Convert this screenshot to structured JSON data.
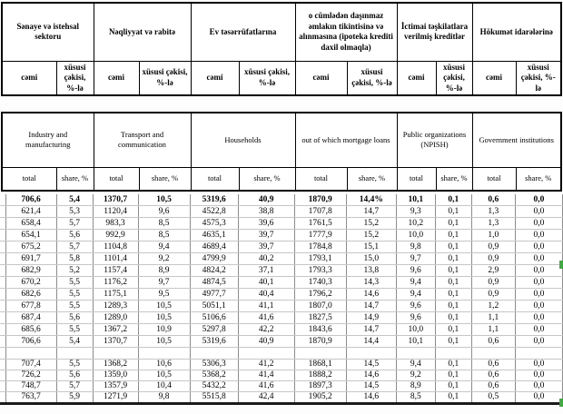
{
  "colors": {
    "border_black": "#000000",
    "row_gridline": "#c6c6c6",
    "column_gridline": "#8c8c8c",
    "marker_green": "#3faa3f"
  },
  "header_az": {
    "total_label": "cəmi",
    "share_label": "xüsusi çəkisi, %-lə",
    "groups": [
      "Sənaye və istehsal sektoru",
      "Nəqliyyat və rabitə",
      "Ev təsərrüfatlarına",
      "o cümlədən daşınmaz əmlakın tikintisinə və alınmasına (ipoteka krediti daxil olmaqla)",
      "İctimai təşkilatlara verilmiş kreditlər",
      "Hökumət idarələrinə"
    ]
  },
  "header_en": {
    "total_label": "total",
    "share_label": "share, %",
    "groups": [
      "Industry and manufacturing",
      "Transport and communication",
      "Households",
      "out of which mortgage loans",
      "Public organizations (NPISH)",
      "Government institutions"
    ]
  },
  "rows_top": [
    [
      "706,6",
      "5,4",
      "1370,7",
      "10,5",
      "5319,6",
      "40,9",
      "1870,9",
      "14,4%",
      "10,1",
      "0,1",
      "0,6",
      "0,0"
    ],
    [
      "621,4",
      "5,3",
      "1120,4",
      "9,6",
      "4522,8",
      "38,8",
      "1707,8",
      "14,7",
      "9,3",
      "0,1",
      "1,3",
      "0,0"
    ],
    [
      "658,4",
      "5,7",
      "983,3",
      "8,5",
      "4575,3",
      "39,6",
      "1761,5",
      "15,2",
      "10,2",
      "0,1",
      "1,3",
      "0,0"
    ],
    [
      "654,1",
      "5,6",
      "992,9",
      "8,5",
      "4635,1",
      "39,7",
      "1777,9",
      "15,2",
      "10,0",
      "0,1",
      "1,0",
      "0,0"
    ],
    [
      "675,2",
      "5,7",
      "1104,8",
      "9,4",
      "4689,4",
      "39,7",
      "1784,8",
      "15,1",
      "9,8",
      "0,1",
      "0,9",
      "0,0"
    ],
    [
      "691,7",
      "5,8",
      "1101,4",
      "9,2",
      "4799,9",
      "40,2",
      "1793,1",
      "15,0",
      "9,7",
      "0,1",
      "0,9",
      "0,0"
    ],
    [
      "682,9",
      "5,2",
      "1157,4",
      "8,9",
      "4824,2",
      "37,1",
      "1793,3",
      "13,8",
      "9,6",
      "0,1",
      "2,9",
      "0,0"
    ],
    [
      "670,2",
      "5,5",
      "1176,2",
      "9,7",
      "4874,5",
      "40,1",
      "1740,3",
      "14,3",
      "9,4",
      "0,1",
      "0,9",
      "0,0"
    ],
    [
      "682,6",
      "5,5",
      "1175,1",
      "9,5",
      "4977,7",
      "40,4",
      "1796,2",
      "14,6",
      "9,4",
      "0,1",
      "0,9",
      "0,0"
    ],
    [
      "677,8",
      "5,5",
      "1289,3",
      "10,5",
      "5051,1",
      "41,1",
      "1807,0",
      "14,7",
      "9,6",
      "0,1",
      "1,2",
      "0,0"
    ],
    [
      "687,4",
      "5,6",
      "1289,0",
      "10,5",
      "5106,6",
      "41,6",
      "1827,5",
      "14,9",
      "9,6",
      "0,1",
      "1,1",
      "0,0"
    ],
    [
      "685,6",
      "5,5",
      "1367,2",
      "10,9",
      "5297,8",
      "42,2",
      "1843,6",
      "14,7",
      "10,0",
      "0,1",
      "1,1",
      "0,0"
    ],
    [
      "706,6",
      "5,4",
      "1370,7",
      "10,5",
      "5319,6",
      "40,9",
      "1870,9",
      "14,4",
      "10,1",
      "0,1",
      "0,6",
      "0,0"
    ]
  ],
  "rows_bottom": [
    [
      "707,4",
      "5,5",
      "1368,2",
      "10,6",
      "5306,3",
      "41,2",
      "1868,1",
      "14,5",
      "9,4",
      "0,1",
      "0,6",
      "0,0"
    ],
    [
      "726,2",
      "5,6",
      "1359,0",
      "10,5",
      "5368,2",
      "41,4",
      "1888,2",
      "14,6",
      "9,2",
      "0,1",
      "0,6",
      "0,0"
    ],
    [
      "748,7",
      "5,7",
      "1357,9",
      "10,4",
      "5432,2",
      "41,6",
      "1897,3",
      "14,5",
      "8,9",
      "0,1",
      "0,6",
      "0,0"
    ],
    [
      "763,7",
      "5,9",
      "1271,9",
      "9,8",
      "5515,8",
      "42,4",
      "1905,2",
      "14,6",
      "8,5",
      "0,1",
      "0,5",
      "0,0"
    ]
  ]
}
